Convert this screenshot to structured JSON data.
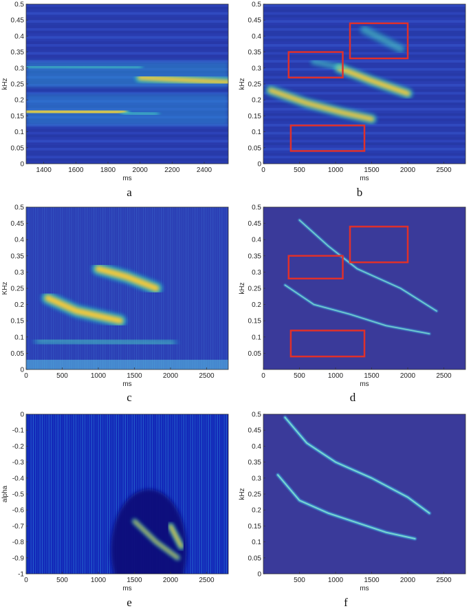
{
  "panels": [
    {
      "letter": "a",
      "type": "heatmap",
      "xlabel": "ms",
      "ylabel": "kHz",
      "xticks": [
        "1400",
        "1600",
        "1800",
        "2000",
        "2200",
        "2400"
      ],
      "yticks": [
        "0",
        "0.05",
        "0.1",
        "0.15",
        "0.2",
        "0.25",
        "0.3",
        "0.35",
        "0.4",
        "0.45",
        "0.5"
      ],
      "xlim": [
        1290,
        2550
      ],
      "ylim": [
        0,
        0.5
      ],
      "boxes": [],
      "ridges": [
        {
          "points": [
            [
              1290,
              0.165
            ],
            [
              1900,
              0.16
            ]
          ],
          "width": 0.022,
          "intensity": 1.0
        },
        {
          "points": [
            [
              1900,
              0.16
            ],
            [
              2100,
              0.155
            ]
          ],
          "width": 0.015,
          "intensity": 0.5
        },
        {
          "points": [
            [
              1290,
              0.305
            ],
            [
              2000,
              0.3
            ]
          ],
          "width": 0.012,
          "intensity": 0.55
        },
        {
          "points": [
            [
              2000,
              0.27
            ],
            [
              2550,
              0.255
            ]
          ],
          "width": 0.02,
          "intensity": 1.0
        }
      ]
    },
    {
      "letter": "b",
      "type": "heatmap",
      "xlabel": "ms",
      "ylabel": "kHz",
      "xticks": [
        "0",
        "500",
        "1000",
        "1500",
        "2000",
        "2500"
      ],
      "yticks": [
        "0",
        "0.05",
        "0.1",
        "0.15",
        "0.2",
        "0.25",
        "0.3",
        "0.35",
        "0.4",
        "0.45",
        "0.5"
      ],
      "xlim": [
        0,
        2800
      ],
      "ylim": [
        0,
        0.5
      ],
      "boxes": [
        {
          "x0": 350,
          "x1": 1100,
          "y0": 0.27,
          "y1": 0.35
        },
        {
          "x0": 1200,
          "x1": 2000,
          "y0": 0.33,
          "y1": 0.44
        },
        {
          "x0": 380,
          "x1": 1400,
          "y0": 0.04,
          "y1": 0.12
        }
      ],
      "ridges": [
        {
          "points": [
            [
              100,
              0.23
            ],
            [
              600,
              0.19
            ],
            [
              1100,
              0.16
            ],
            [
              1500,
              0.14
            ]
          ],
          "width": 0.02,
          "intensity": 0.95
        },
        {
          "points": [
            [
              1050,
              0.3
            ],
            [
              1500,
              0.26
            ],
            [
              2000,
              0.22
            ]
          ],
          "width": 0.02,
          "intensity": 1.0
        },
        {
          "points": [
            [
              700,
              0.32
            ],
            [
              1100,
              0.3
            ]
          ],
          "width": 0.015,
          "intensity": 0.45
        },
        {
          "points": [
            [
              1400,
              0.42
            ],
            [
              1900,
              0.36
            ]
          ],
          "width": 0.02,
          "intensity": 0.45
        }
      ]
    },
    {
      "letter": "c",
      "type": "heatmap",
      "xlabel": "ms",
      "ylabel": "KHz",
      "xticks": [
        "0",
        "500",
        "1000",
        "1500",
        "2000",
        "2500"
      ],
      "yticks": [
        "0",
        "0.05",
        "0.1",
        "0.15",
        "0.2",
        "0.25",
        "0.3",
        "0.35",
        "0.4",
        "0.45",
        "0.5"
      ],
      "xlim": [
        0,
        2800
      ],
      "ylim": [
        0,
        0.5
      ],
      "boxes": [],
      "ridges": [
        {
          "points": [
            [
              300,
              0.22
            ],
            [
              700,
              0.18
            ],
            [
              1000,
              0.165
            ],
            [
              1300,
              0.15
            ]
          ],
          "width": 0.025,
          "intensity": 1.0
        },
        {
          "points": [
            [
              1000,
              0.31
            ],
            [
              1400,
              0.285
            ],
            [
              1800,
              0.25
            ]
          ],
          "width": 0.025,
          "intensity": 1.0
        },
        {
          "points": [
            [
              200,
              0.09
            ],
            [
              2000,
              0.08
            ]
          ],
          "width": 0.03,
          "intensity": 0.35
        }
      ]
    },
    {
      "letter": "d",
      "type": "heatmap",
      "xlabel": "ms",
      "ylabel": "kHz",
      "xticks": [
        "0",
        "500",
        "1000",
        "1500",
        "2000",
        "2500"
      ],
      "yticks": [
        "0.05",
        "0.1",
        "0.15",
        "0.2",
        "0.25",
        "0.3",
        "0.35",
        "0.4",
        "0.45",
        "0.5"
      ],
      "xlim": [
        0,
        2800
      ],
      "ylim": [
        0,
        0.5
      ],
      "boxes": [
        {
          "x0": 350,
          "x1": 1100,
          "y0": 0.28,
          "y1": 0.35
        },
        {
          "x0": 1200,
          "x1": 2000,
          "y0": 0.33,
          "y1": 0.44
        },
        {
          "x0": 380,
          "x1": 1400,
          "y0": 0.04,
          "y1": 0.12
        }
      ],
      "ridges": [
        {
          "points": [
            [
              300,
              0.26
            ],
            [
              700,
              0.2
            ],
            [
              1200,
              0.17
            ],
            [
              1700,
              0.135
            ],
            [
              2300,
              0.11
            ]
          ],
          "width": 0.005,
          "intensity": 0.8
        },
        {
          "points": [
            [
              500,
              0.46
            ],
            [
              900,
              0.38
            ],
            [
              1300,
              0.31
            ],
            [
              1900,
              0.25
            ],
            [
              2400,
              0.18
            ]
          ],
          "width": 0.005,
          "intensity": 0.8
        }
      ]
    },
    {
      "letter": "e",
      "type": "heatmap",
      "xlabel": "ms",
      "ylabel": "alpha",
      "xticks": [
        "0",
        "500",
        "1000",
        "1500",
        "2000",
        "2500"
      ],
      "yticks": [
        "-1",
        "-0.9",
        "-0.8",
        "-0.7",
        "-0.6",
        "-0.5",
        "-0.4",
        "-0.3",
        "-0.2",
        "-0.1",
        "0"
      ],
      "xlim": [
        0,
        2800
      ],
      "ylim": [
        -1,
        0
      ],
      "boxes": [],
      "ridges": [
        {
          "points": [
            [
              1500,
              -0.67
            ],
            [
              1800,
              -0.8
            ],
            [
              2100,
              -0.9
            ]
          ],
          "width": 0.02,
          "intensity": 0.9
        },
        {
          "points": [
            [
              2000,
              -0.7
            ],
            [
              2150,
              -0.83
            ]
          ],
          "width": 0.025,
          "intensity": 1.0
        }
      ]
    },
    {
      "letter": "f",
      "type": "heatmap",
      "xlabel": "ms",
      "ylabel": "kHz",
      "xticks": [
        "500",
        "1000",
        "1500",
        "2000",
        "2500"
      ],
      "yticks": [
        "0",
        "0.05",
        "0.1",
        "0.15",
        "0.2",
        "0.25",
        "0.3",
        "0.35",
        "0.4",
        "0.45",
        "0.5"
      ],
      "xlim": [
        0,
        2800
      ],
      "ylim": [
        0,
        0.5
      ],
      "boxes": [],
      "ridges": [
        {
          "points": [
            [
              200,
              0.31
            ],
            [
              500,
              0.23
            ],
            [
              900,
              0.19
            ],
            [
              1300,
              0.16
            ],
            [
              1700,
              0.13
            ],
            [
              2100,
              0.11
            ]
          ],
          "width": 0.006,
          "intensity": 0.9
        },
        {
          "points": [
            [
              300,
              0.49
            ],
            [
              600,
              0.41
            ],
            [
              1000,
              0.35
            ],
            [
              1500,
              0.3
            ],
            [
              2000,
              0.24
            ],
            [
              2300,
              0.19
            ]
          ],
          "width": 0.006,
          "intensity": 0.9
        }
      ]
    }
  ],
  "chart_data": [
    {
      "panel": "a",
      "type": "heatmap",
      "xlabel": "ms",
      "ylabel": "kHz",
      "xlim": [
        1290,
        2550
      ],
      "ylim": [
        0,
        0.5
      ]
    },
    {
      "panel": "b",
      "type": "heatmap",
      "xlabel": "ms",
      "ylabel": "kHz",
      "xlim": [
        0,
        2800
      ],
      "ylim": [
        0,
        0.5
      ]
    },
    {
      "panel": "c",
      "type": "heatmap",
      "xlabel": "ms",
      "ylabel": "KHz",
      "xlim": [
        0,
        2800
      ],
      "ylim": [
        0,
        0.5
      ]
    },
    {
      "panel": "d",
      "type": "heatmap",
      "xlabel": "ms",
      "ylabel": "kHz",
      "xlim": [
        0,
        2800
      ],
      "ylim": [
        0,
        0.5
      ]
    },
    {
      "panel": "e",
      "type": "heatmap",
      "xlabel": "ms",
      "ylabel": "alpha",
      "xlim": [
        0,
        2800
      ],
      "ylim": [
        -1,
        0
      ]
    },
    {
      "panel": "f",
      "type": "heatmap",
      "xlabel": "ms",
      "ylabel": "kHz",
      "xlim": [
        0,
        2800
      ],
      "ylim": [
        0,
        0.5
      ]
    }
  ],
  "colors": {
    "background": "#352a87",
    "low": "#2a3fb0",
    "mid": "#22b6c8",
    "high": "#f5c93a",
    "box": "#e0302a"
  }
}
